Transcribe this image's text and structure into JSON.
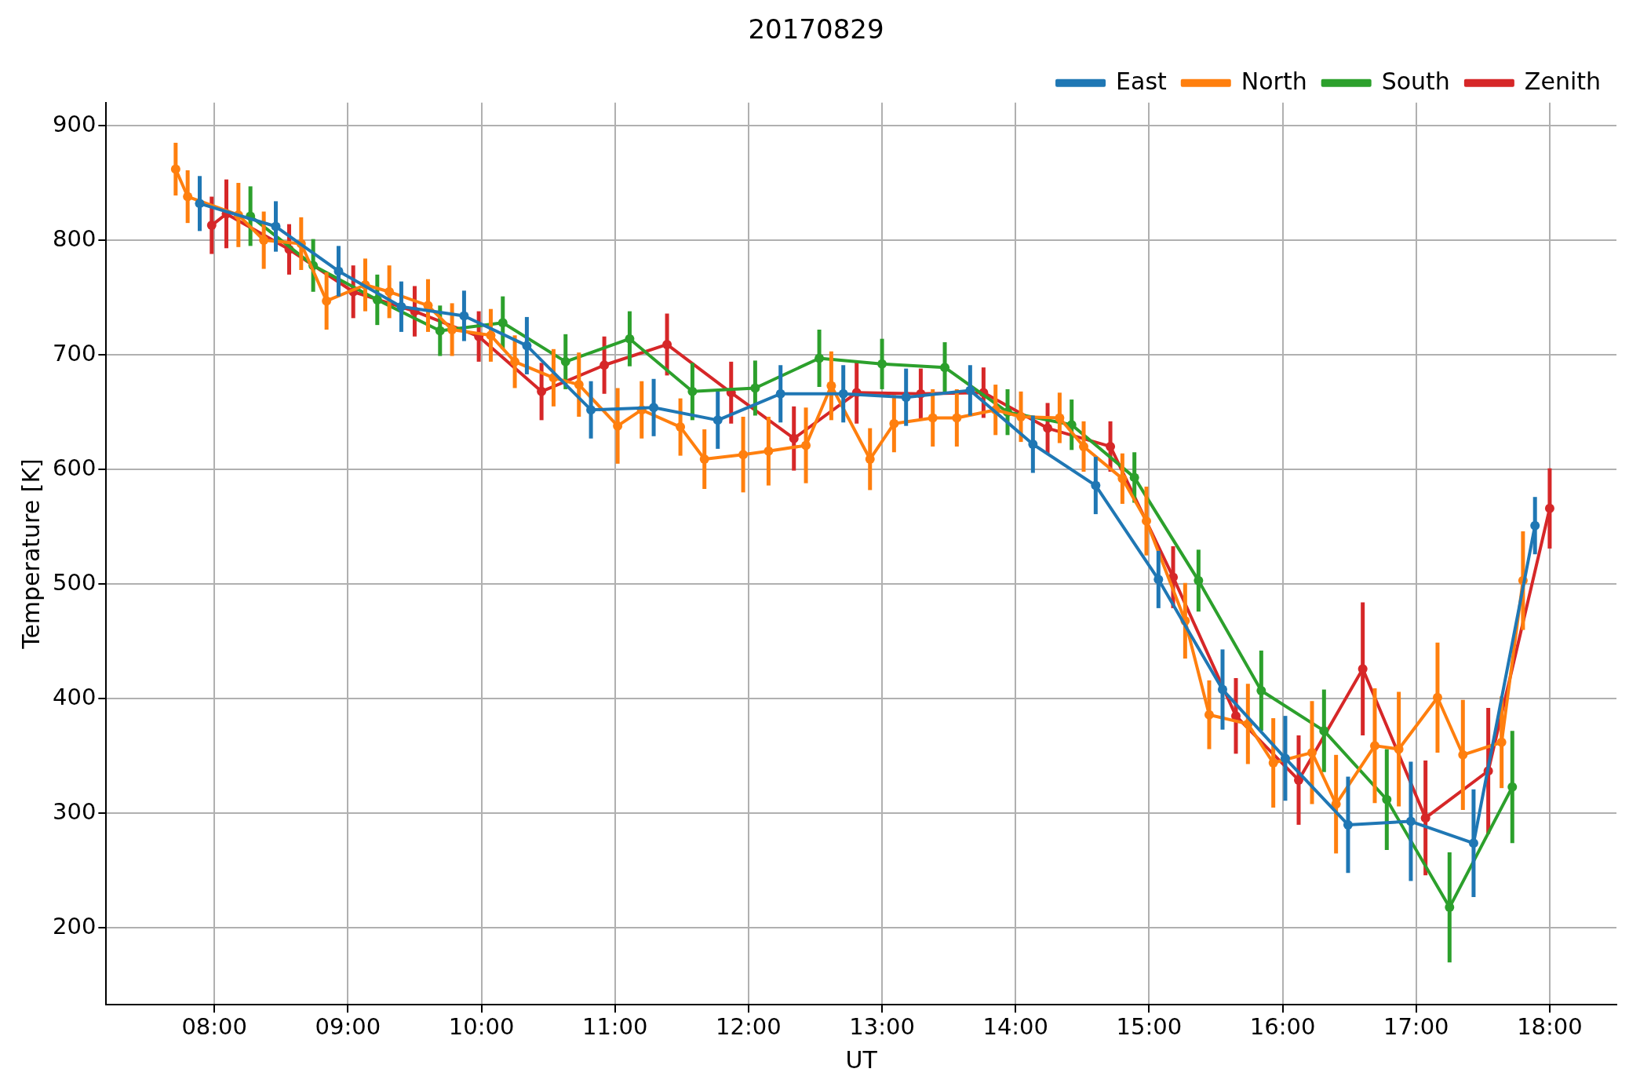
{
  "chart_data": {
    "type": "line",
    "title": "20170829",
    "xlabel": "UT",
    "ylabel": "Temperature [K]",
    "xlim": [
      7.19,
      18.5
    ],
    "ylim": [
      133,
      920
    ],
    "xticks": [
      {
        "value": 8,
        "label": "08:00"
      },
      {
        "value": 9,
        "label": "09:00"
      },
      {
        "value": 10,
        "label": "10:00"
      },
      {
        "value": 11,
        "label": "11:00"
      },
      {
        "value": 12,
        "label": "12:00"
      },
      {
        "value": 13,
        "label": "13:00"
      },
      {
        "value": 14,
        "label": "14:00"
      },
      {
        "value": 15,
        "label": "15:00"
      },
      {
        "value": 16,
        "label": "16:00"
      },
      {
        "value": 17,
        "label": "17:00"
      },
      {
        "value": 18,
        "label": "18:00"
      }
    ],
    "yticks": [
      200,
      300,
      400,
      500,
      600,
      700,
      800,
      900
    ],
    "grid": true,
    "legend": "top right",
    "marker": "circle",
    "line_style": "solid",
    "series": [
      {
        "name": "East",
        "color": "#1f77b4",
        "x": [
          7.89,
          8.46,
          8.93,
          9.4,
          9.87,
          10.34,
          10.82,
          11.29,
          11.77,
          12.24,
          12.71,
          13.18,
          13.66,
          14.13,
          14.6,
          15.07,
          15.55,
          16.02,
          16.49,
          16.96,
          17.43,
          17.89
        ],
        "values": [
          832,
          812,
          773,
          742,
          734,
          708,
          652,
          654,
          643,
          666,
          666,
          663,
          669,
          622,
          586,
          504,
          408,
          348,
          290,
          293,
          274,
          551
        ],
        "errors": [
          24,
          22,
          22,
          22,
          22,
          25,
          25,
          25,
          25,
          25,
          25,
          25,
          22,
          25,
          25,
          25,
          35,
          37,
          42,
          52,
          47,
          25
        ]
      },
      {
        "name": "North",
        "color": "#ff7f0e",
        "x": [
          7.71,
          7.8,
          8.18,
          8.37,
          8.65,
          8.84,
          9.13,
          9.31,
          9.6,
          9.78,
          10.07,
          10.25,
          10.54,
          10.73,
          11.02,
          11.2,
          11.49,
          11.67,
          11.96,
          12.15,
          12.43,
          12.62,
          12.91,
          13.09,
          13.38,
          13.56,
          13.85,
          14.04,
          14.33,
          14.51,
          14.8,
          14.98,
          15.27,
          15.45,
          15.74,
          15.93,
          16.22,
          16.4,
          16.69,
          16.87,
          17.16,
          17.35,
          17.64,
          17.8
        ],
        "values": [
          862,
          838,
          822,
          800,
          797,
          747,
          761,
          755,
          743,
          722,
          717,
          694,
          680,
          674,
          638,
          652,
          637,
          609,
          613,
          616,
          621,
          673,
          609,
          640,
          645,
          645,
          652,
          646,
          645,
          620,
          592,
          555,
          468,
          386,
          378,
          344,
          353,
          308,
          359,
          356,
          401,
          351,
          362,
          503
        ],
        "errors": [
          23,
          23,
          28,
          25,
          23,
          25,
          23,
          23,
          23,
          23,
          23,
          23,
          25,
          28,
          33,
          25,
          25,
          26,
          33,
          30,
          33,
          30,
          27,
          25,
          25,
          25,
          22,
          22,
          22,
          22,
          22,
          30,
          33,
          30,
          35,
          39,
          45,
          43,
          50,
          50,
          48,
          48,
          40,
          43
        ]
      },
      {
        "name": "South",
        "color": "#2ca02c",
        "x": [
          8.27,
          8.74,
          9.22,
          9.69,
          10.16,
          10.63,
          11.11,
          11.58,
          12.05,
          12.53,
          13.0,
          13.47,
          13.94,
          14.42,
          14.89,
          15.37,
          15.84,
          16.31,
          16.78,
          17.25,
          17.72
        ],
        "values": [
          821,
          778,
          748,
          721,
          728,
          694,
          714,
          668,
          671,
          697,
          692,
          689,
          650,
          639,
          593,
          503,
          407,
          372,
          312,
          218,
          323
        ],
        "errors": [
          26,
          23,
          22,
          22,
          23,
          24,
          24,
          25,
          24,
          25,
          22,
          22,
          20,
          22,
          22,
          27,
          35,
          36,
          44,
          48,
          49
        ]
      },
      {
        "name": "Zenith",
        "color": "#d62728",
        "x": [
          7.98,
          8.09,
          8.56,
          9.04,
          9.5,
          9.98,
          10.45,
          10.92,
          11.39,
          11.87,
          12.34,
          12.81,
          13.29,
          13.76,
          14.24,
          14.71,
          15.18,
          15.65,
          16.12,
          16.6,
          17.07,
          17.54,
          18.0
        ],
        "values": [
          813,
          823,
          792,
          755,
          738,
          716,
          668,
          691,
          709,
          667,
          627,
          667,
          666,
          667,
          636,
          620,
          506,
          385,
          329,
          426,
          296,
          337,
          566
        ],
        "errors": [
          25,
          30,
          22,
          23,
          22,
          22,
          25,
          25,
          27,
          27,
          28,
          27,
          22,
          22,
          22,
          22,
          27,
          33,
          39,
          58,
          50,
          55,
          35
        ]
      }
    ]
  }
}
